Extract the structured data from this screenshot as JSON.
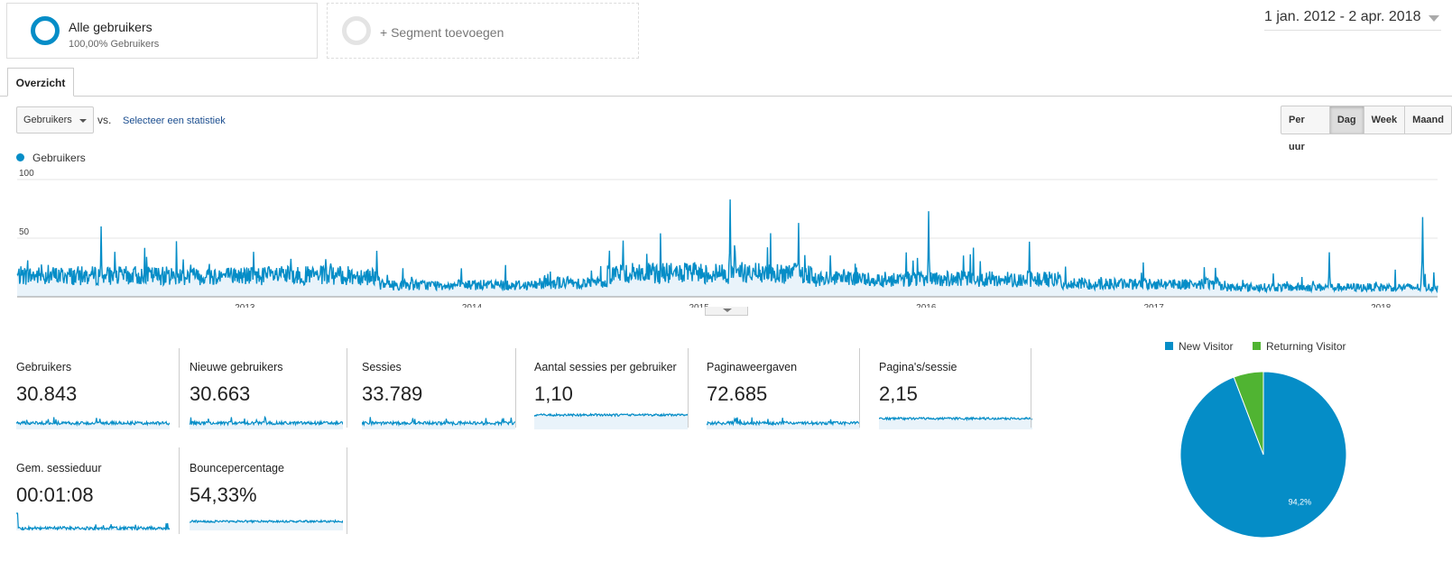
{
  "segments": {
    "active": {
      "name": "Alle gebruikers",
      "sub": "100,00% Gebruikers"
    },
    "add_label": "+ Segment toevoegen"
  },
  "date_range": "1 jan. 2012 - 2 apr. 2018",
  "tabs": [
    {
      "label": "Overzicht",
      "active": true
    }
  ],
  "controls": {
    "metric": "Gebruikers",
    "vs": "vs.",
    "select_stat": "Selecteer een statistiek",
    "periods": [
      "Per uur",
      "Dag",
      "Week",
      "Maand"
    ],
    "active_period": "Dag"
  },
  "colors": {
    "accent": "#058dc7",
    "fill": "#e9f3fa",
    "returning": "#50b432"
  },
  "chart_data": [
    {
      "type": "area",
      "series": [
        {
          "name": "Gebruikers",
          "color": "#058dc7"
        }
      ],
      "y_ticks": [
        "100",
        "50"
      ],
      "ylim": [
        0,
        100
      ],
      "x_ticks": [
        "2013",
        "2014",
        "2015",
        "2016",
        "2017",
        "2018"
      ],
      "xlim": [
        "2012-01-01",
        "2018-04-02"
      ],
      "grid": true,
      "legend": "top-left",
      "approx_daily_baseline": 14,
      "peaks": [
        {
          "date": "2012-05-15",
          "value": 60
        },
        {
          "date": "2014-09-01",
          "value": 48
        },
        {
          "date": "2015-02-20",
          "value": 83
        },
        {
          "date": "2015-06-10",
          "value": 63
        },
        {
          "date": "2016-01-05",
          "value": 73
        },
        {
          "date": "2016-06-15",
          "value": 47
        },
        {
          "date": "2017-10-10",
          "value": 38
        },
        {
          "date": "2018-03-09",
          "value": 68
        }
      ]
    },
    {
      "type": "pie",
      "legend": "top",
      "slices": [
        {
          "name": "New Visitor",
          "value": 94.2,
          "label": "94,2%",
          "color": "#058dc7"
        },
        {
          "name": "Returning Visitor",
          "value": 5.8,
          "label": "",
          "color": "#50b432"
        }
      ]
    }
  ],
  "scorecards": [
    {
      "label": "Gebruikers",
      "value": "30.843"
    },
    {
      "label": "Nieuwe gebruikers",
      "value": "30.663"
    },
    {
      "label": "Sessies",
      "value": "33.789"
    },
    {
      "label": "Aantal sessies per gebruiker",
      "value": "1,10"
    },
    {
      "label": "Paginaweergaven",
      "value": "72.685"
    },
    {
      "label": "Pagina's/sessie",
      "value": "2,15"
    },
    {
      "label": "Gem. sessieduur",
      "value": "00:01:08"
    },
    {
      "label": "Bouncepercentage",
      "value": "54,33%"
    }
  ]
}
